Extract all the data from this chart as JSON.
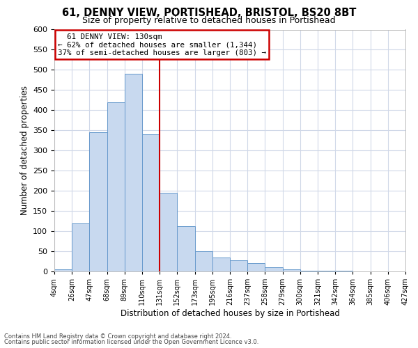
{
  "title": "61, DENNY VIEW, PORTISHEAD, BRISTOL, BS20 8BT",
  "subtitle": "Size of property relative to detached houses in Portishead",
  "xlabel": "Distribution of detached houses by size in Portishead",
  "ylabel": "Number of detached properties",
  "bin_labels": [
    "4sqm",
    "26sqm",
    "47sqm",
    "68sqm",
    "89sqm",
    "110sqm",
    "131sqm",
    "152sqm",
    "173sqm",
    "195sqm",
    "216sqm",
    "237sqm",
    "258sqm",
    "279sqm",
    "300sqm",
    "321sqm",
    "342sqm",
    "364sqm",
    "385sqm",
    "406sqm",
    "427sqm"
  ],
  "bar_values": [
    5,
    120,
    345,
    420,
    490,
    340,
    195,
    113,
    50,
    34,
    27,
    20,
    10,
    5,
    2,
    1,
    1,
    0,
    0,
    0
  ],
  "bar_color": "#c8d9ef",
  "bar_edge_color": "#6699cc",
  "reference_line_index": 6,
  "reference_line_label": "61 DENNY VIEW: 130sqm",
  "annotation_line1": "← 62% of detached houses are smaller (1,344)",
  "annotation_line2": "37% of semi-detached houses are larger (803) →",
  "annotation_box_edge": "#cc0000",
  "reference_line_color": "#cc0000",
  "ylim": [
    0,
    600
  ],
  "yticks": [
    0,
    50,
    100,
    150,
    200,
    250,
    300,
    350,
    400,
    450,
    500,
    550,
    600
  ],
  "footer_line1": "Contains HM Land Registry data © Crown copyright and database right 2024.",
  "footer_line2": "Contains public sector information licensed under the Open Government Licence v3.0.",
  "background_color": "#ffffff",
  "grid_color": "#d0d8e8"
}
